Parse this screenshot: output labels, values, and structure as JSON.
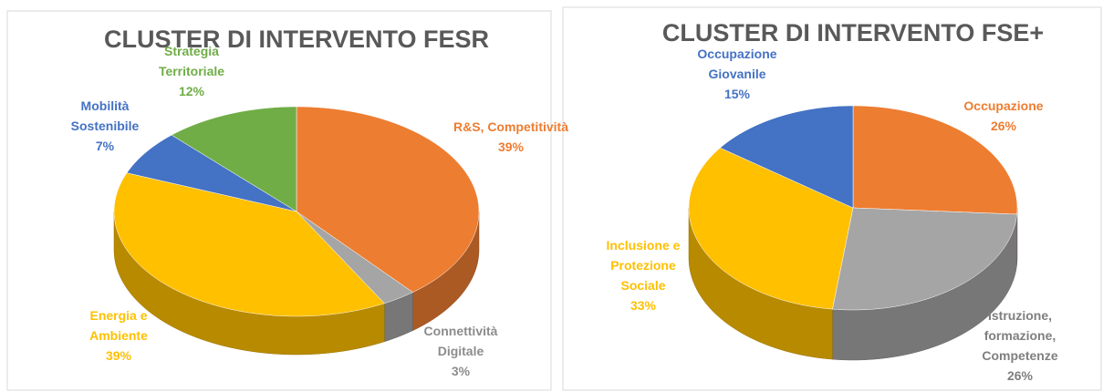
{
  "chart_data": [
    {
      "type": "pie",
      "title": "CLUSTER DI INTERVENTO FESR",
      "categories": [
        "R&S, Competitività",
        "Connettività Digitale",
        "Energia e Ambiente",
        "Mobilità Sostenibile",
        "Strategia Territoriale"
      ],
      "values": [
        39,
        3,
        39,
        7,
        12
      ],
      "value_labels": [
        "39%",
        "3%",
        "39%",
        "7%",
        "12%"
      ],
      "colors": [
        "#ED7D31",
        "#A5A5A5",
        "#FFC000",
        "#4472C4",
        "#70AD47"
      ]
    },
    {
      "type": "pie",
      "title": "CLUSTER DI INTERVENTO FSE+",
      "categories": [
        "Occupazione",
        "Istruzione, formazione, Competenze",
        "Inclusione e Protezione Sociale",
        "Occupazione Giovanile"
      ],
      "values": [
        26,
        26,
        33,
        15
      ],
      "value_labels": [
        "26%",
        "26%",
        "33%",
        "15%"
      ],
      "colors": [
        "#ED7D31",
        "#A5A5A5",
        "#FFC000",
        "#4472C4"
      ]
    }
  ]
}
